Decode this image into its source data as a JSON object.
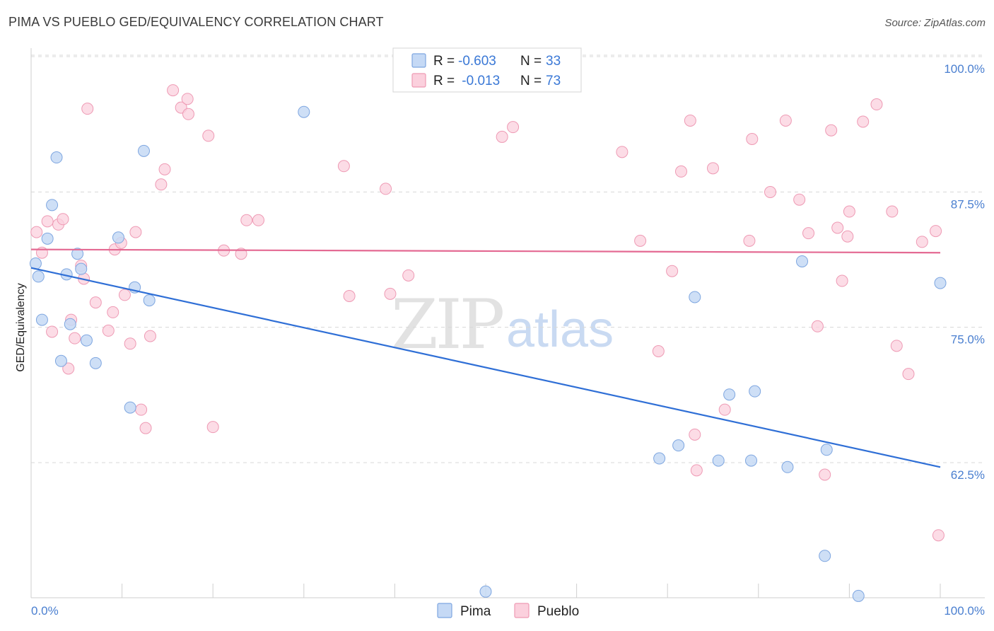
{
  "title": "PIMA VS PUEBLO GED/EQUIVALENCY CORRELATION CHART",
  "source": "Source: ZipAtlas.com",
  "watermark": {
    "zip": "ZIP",
    "atlas": "atlas"
  },
  "legend_top": {
    "rows": [
      {
        "r_label": "R = ",
        "r_value": "-0.603",
        "n_label": "N = ",
        "n_value": "33"
      },
      {
        "r_label": "R = ",
        "r_value": " -0.013",
        "n_label": "N = ",
        "n_value": "73"
      }
    ]
  },
  "legend_bottom": {
    "pima": "Pima",
    "pueblo": "Pueblo"
  },
  "colors": {
    "pima_fill": "#c5d9f5",
    "pima_stroke": "#7ea6e0",
    "pima_line": "#2f6fd6",
    "pueblo_fill": "#fbd0dd",
    "pueblo_stroke": "#ee9ab4",
    "pueblo_line": "#e46a93",
    "axis_text": "#4a7fd0",
    "grid": "#d8d8d8"
  },
  "chart_data": {
    "type": "scatter",
    "title": "PIMA VS PUEBLO GED/EQUIVALENCY CORRELATION CHART",
    "xlabel": "",
    "ylabel": "GED/Equivalency",
    "xlim": [
      0,
      100
    ],
    "ylim": [
      51.5,
      102
    ],
    "x_tick_labels": [
      "0.0%",
      "100.0%"
    ],
    "y_ticks": [
      62.5,
      75.0,
      87.5,
      100.0
    ],
    "y_tick_labels": [
      "62.5%",
      "75.0%",
      "87.5%",
      "100.0%"
    ],
    "grid": "horizontal dashed",
    "legend_position": "top-center",
    "series": [
      {
        "name": "Pima",
        "r": -0.603,
        "n": 33,
        "trend": {
          "x": [
            0,
            100
          ],
          "y": [
            81.6,
            63.2
          ]
        },
        "points": [
          [
            0.5,
            82.0
          ],
          [
            0.8,
            80.8
          ],
          [
            1.2,
            76.8
          ],
          [
            1.8,
            84.3
          ],
          [
            2.3,
            87.4
          ],
          [
            2.8,
            91.8
          ],
          [
            3.3,
            73.0
          ],
          [
            3.9,
            81.0
          ],
          [
            4.3,
            76.4
          ],
          [
            5.1,
            82.9
          ],
          [
            5.5,
            81.5
          ],
          [
            6.1,
            74.9
          ],
          [
            7.1,
            72.8
          ],
          [
            9.6,
            84.4
          ],
          [
            10.9,
            68.7
          ],
          [
            11.4,
            79.8
          ],
          [
            12.4,
            92.4
          ],
          [
            13.0,
            78.6
          ],
          [
            30.0,
            96.0
          ],
          [
            50.0,
            51.7
          ],
          [
            69.1,
            64.0
          ],
          [
            71.2,
            65.2
          ],
          [
            73.0,
            78.9
          ],
          [
            75.6,
            63.8
          ],
          [
            76.8,
            69.9
          ],
          [
            79.2,
            63.8
          ],
          [
            79.6,
            70.2
          ],
          [
            83.2,
            63.2
          ],
          [
            84.8,
            82.2
          ],
          [
            87.3,
            55.0
          ],
          [
            87.5,
            64.8
          ],
          [
            91.0,
            51.3
          ],
          [
            100.0,
            80.2
          ]
        ]
      },
      {
        "name": "Pueblo",
        "r": -0.013,
        "n": 73,
        "trend": {
          "x": [
            0,
            100
          ],
          "y": [
            83.3,
            83.0
          ]
        },
        "points": [
          [
            0.6,
            84.9
          ],
          [
            1.2,
            83.0
          ],
          [
            1.8,
            85.9
          ],
          [
            2.3,
            75.7
          ],
          [
            3.0,
            85.6
          ],
          [
            3.5,
            86.1
          ],
          [
            4.1,
            72.3
          ],
          [
            4.4,
            76.8
          ],
          [
            4.8,
            75.1
          ],
          [
            5.5,
            81.8
          ],
          [
            5.8,
            80.6
          ],
          [
            6.2,
            96.3
          ],
          [
            7.1,
            78.4
          ],
          [
            8.5,
            75.8
          ],
          [
            9.0,
            77.5
          ],
          [
            9.2,
            83.3
          ],
          [
            9.9,
            83.9
          ],
          [
            10.3,
            79.1
          ],
          [
            10.9,
            74.6
          ],
          [
            11.5,
            84.9
          ],
          [
            12.1,
            68.5
          ],
          [
            12.6,
            66.8
          ],
          [
            13.1,
            75.3
          ],
          [
            14.3,
            89.3
          ],
          [
            14.7,
            90.7
          ],
          [
            15.6,
            98.0
          ],
          [
            16.5,
            96.4
          ],
          [
            17.2,
            97.2
          ],
          [
            17.3,
            95.8
          ],
          [
            19.5,
            93.8
          ],
          [
            20.0,
            66.9
          ],
          [
            21.2,
            83.2
          ],
          [
            23.1,
            82.9
          ],
          [
            23.7,
            86.0
          ],
          [
            25.0,
            86.0
          ],
          [
            34.4,
            91.0
          ],
          [
            35.0,
            79.0
          ],
          [
            39.0,
            88.9
          ],
          [
            39.5,
            79.2
          ],
          [
            41.5,
            80.9
          ],
          [
            51.8,
            93.7
          ],
          [
            53.0,
            94.6
          ],
          [
            65.0,
            92.3
          ],
          [
            67.0,
            84.1
          ],
          [
            69.0,
            73.9
          ],
          [
            70.5,
            81.3
          ],
          [
            71.5,
            90.5
          ],
          [
            72.5,
            95.2
          ],
          [
            73.0,
            66.2
          ],
          [
            73.2,
            62.9
          ],
          [
            75.0,
            90.8
          ],
          [
            76.3,
            68.5
          ],
          [
            79.0,
            84.1
          ],
          [
            79.3,
            93.5
          ],
          [
            81.3,
            88.6
          ],
          [
            83.0,
            95.2
          ],
          [
            84.5,
            87.9
          ],
          [
            85.5,
            84.8
          ],
          [
            86.5,
            76.2
          ],
          [
            87.3,
            62.5
          ],
          [
            88.0,
            94.3
          ],
          [
            88.7,
            85.3
          ],
          [
            89.2,
            80.4
          ],
          [
            89.8,
            84.5
          ],
          [
            90.0,
            86.8
          ],
          [
            91.5,
            95.1
          ],
          [
            93.0,
            96.7
          ],
          [
            94.7,
            86.8
          ],
          [
            95.2,
            74.4
          ],
          [
            96.5,
            71.8
          ],
          [
            99.8,
            56.9
          ],
          [
            99.5,
            85.0
          ],
          [
            98.0,
            84.0
          ]
        ]
      }
    ]
  }
}
